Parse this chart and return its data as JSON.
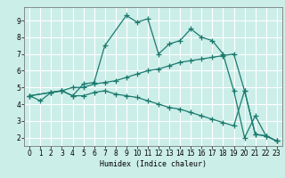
{
  "xlabel": "Humidex (Indice chaleur)",
  "xlim": [
    -0.5,
    23.5
  ],
  "ylim": [
    1.5,
    9.8
  ],
  "yticks": [
    2,
    3,
    4,
    5,
    6,
    7,
    8,
    9
  ],
  "xticks": [
    0,
    1,
    2,
    3,
    4,
    5,
    6,
    7,
    8,
    9,
    10,
    11,
    12,
    13,
    14,
    15,
    16,
    17,
    18,
    19,
    20,
    21,
    22,
    23
  ],
  "bg_color": "#cceee8",
  "grid_color": "#ffffff",
  "line_color": "#1a7a6e",
  "series": [
    {
      "x": [
        0,
        1,
        2,
        3,
        4,
        5,
        6,
        7,
        9,
        10,
        11,
        12,
        13,
        14,
        15,
        16,
        17,
        18,
        19,
        20,
        21,
        22,
        23
      ],
      "y": [
        4.5,
        4.2,
        4.7,
        4.8,
        4.5,
        5.2,
        5.3,
        7.5,
        9.3,
        8.9,
        9.1,
        7.0,
        7.6,
        7.8,
        8.5,
        8.0,
        7.8,
        7.0,
        4.8,
        2.0,
        3.3,
        2.1,
        1.8
      ]
    },
    {
      "x": [
        0,
        2,
        3,
        4,
        5,
        6,
        7,
        8,
        9,
        10,
        11,
        12,
        13,
        14,
        15,
        16,
        17,
        18,
        19,
        20,
        21,
        22,
        23
      ],
      "y": [
        4.5,
        4.7,
        4.8,
        5.0,
        5.0,
        5.2,
        5.3,
        5.4,
        5.6,
        5.8,
        6.0,
        6.1,
        6.3,
        6.5,
        6.6,
        6.7,
        6.8,
        6.9,
        7.0,
        4.8,
        2.2,
        2.1,
        1.8
      ]
    },
    {
      "x": [
        0,
        2,
        3,
        4,
        5,
        6,
        7,
        8,
        9,
        10,
        11,
        12,
        13,
        14,
        15,
        16,
        17,
        18,
        19,
        20,
        21,
        22,
        23
      ],
      "y": [
        4.5,
        4.7,
        4.8,
        4.5,
        4.5,
        4.7,
        4.8,
        4.6,
        4.5,
        4.4,
        4.2,
        4.0,
        3.8,
        3.7,
        3.5,
        3.3,
        3.1,
        2.9,
        2.7,
        4.8,
        2.2,
        2.1,
        1.8
      ]
    }
  ],
  "marker": "+",
  "markersize": 4,
  "linewidth": 0.9,
  "axis_fontsize": 6,
  "tick_fontsize": 5.5
}
